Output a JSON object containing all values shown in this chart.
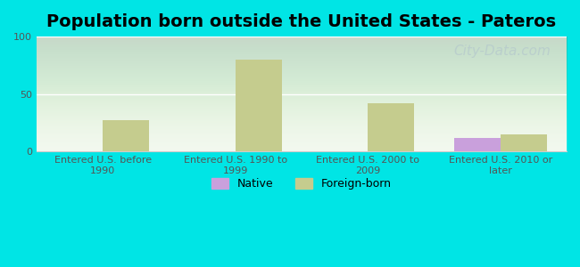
{
  "title": "Population born outside the United States - Pateros",
  "categories": [
    "Entered U.S. before\n1990",
    "Entered U.S. 1990 to\n1999",
    "Entered U.S. 2000 to\n2009",
    "Entered U.S. 2010 or\nlater"
  ],
  "native_values": [
    0,
    0,
    0,
    12
  ],
  "foreign_values": [
    27,
    80,
    42,
    15
  ],
  "native_color": "#c9a0dc",
  "foreign_color": "#c5cc8e",
  "background_outer": "#00e5e5",
  "background_inner": "#f2f8ee",
  "ylim": [
    0,
    100
  ],
  "yticks": [
    0,
    50,
    100
  ],
  "bar_width": 0.35,
  "title_fontsize": 14,
  "tick_fontsize": 8,
  "legend_fontsize": 9,
  "watermark_text": "City-Data.com",
  "watermark_color": "#b8cccc",
  "watermark_fontsize": 11
}
